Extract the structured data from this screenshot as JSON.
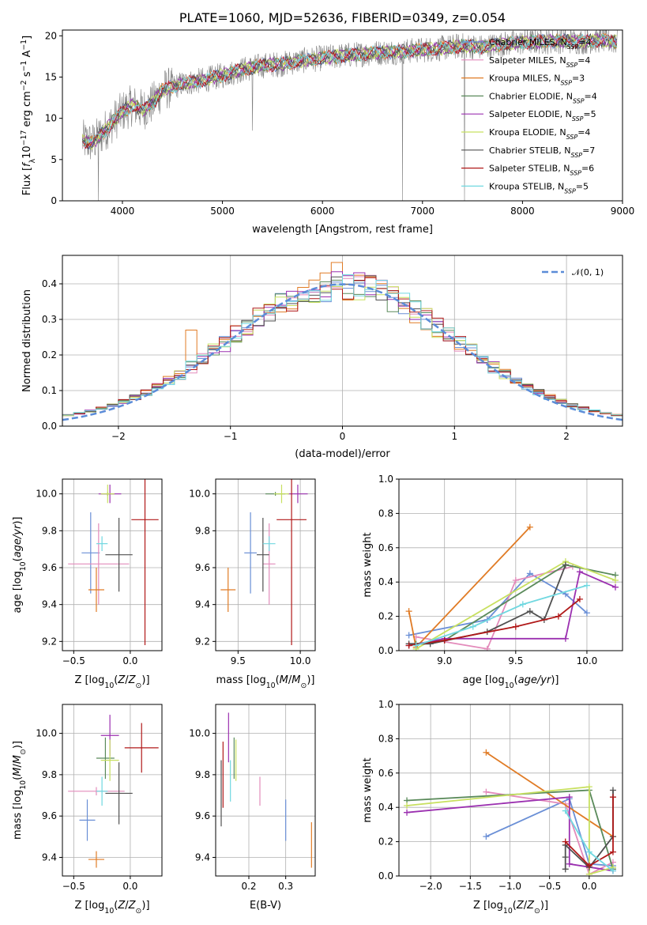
{
  "figure": {
    "title": "PLATE=1060, MJD=52636, FIBERID=0349, z=0.054"
  },
  "colors": {
    "Chabrier MILES": "#6a8fd6",
    "Salpeter MILES": "#e38bbb",
    "Kroupa MILES": "#e07b25",
    "Chabrier ELODIE": "#5a8a5a",
    "Salpeter ELODIE": "#9b30b0",
    "Kroupa ELODIE": "#c8e060",
    "Chabrier STELIB": "#505050",
    "Salpeter STELIB": "#b01818",
    "Kroupa STELIB": "#70d8e0",
    "data": "#808080",
    "normal": "#5b8cd8"
  },
  "chart_data": [
    {
      "id": "spectrum",
      "type": "line",
      "title": "PLATE=1060, MJD=52636, FIBERID=0349, z=0.054",
      "xlabel": "wavelength [Angstrom, rest frame]",
      "ylabel": "Flux [f_λ 10^-17 erg cm^-2 s^-1 A^-1]",
      "xlim": [
        3400,
        9000
      ],
      "ylim": [
        0,
        20.7
      ],
      "xticks": [
        4000,
        5000,
        6000,
        7000,
        8000,
        9000
      ],
      "yticks": [
        0,
        5,
        10,
        15,
        20
      ],
      "grid": false,
      "legend_position": "right",
      "continuum": {
        "x": [
          3600,
          3700,
          3800,
          3900,
          4000,
          4100,
          4200,
          4300,
          4400,
          4600,
          4800,
          5000,
          5200,
          5400,
          5600,
          5800,
          6000,
          6200,
          6400,
          6600,
          6800,
          7000,
          7200,
          7400,
          7600,
          7800,
          8000,
          8200,
          8400,
          8600,
          8800,
          8950
        ],
        "y": [
          7.3,
          7.0,
          8.2,
          9.5,
          10.8,
          11.6,
          11.0,
          11.8,
          13.4,
          14.2,
          14.6,
          15.2,
          15.9,
          16.4,
          16.6,
          17.0,
          17.3,
          17.6,
          17.8,
          18.0,
          18.1,
          18.3,
          18.5,
          18.8,
          18.6,
          19.0,
          19.2,
          19.3,
          19.4,
          19.3,
          19.5,
          19.2
        ]
      },
      "legend": [
        "Chabrier MILES, N_SSP=4",
        "Salpeter MILES, N_SSP=4",
        "Kroupa MILES, N_SSP=3",
        "Chabrier ELODIE, N_SSP=4",
        "Salpeter ELODIE, N_SSP=5",
        "Kroupa ELODIE, N_SSP=4",
        "Chabrier STELIB, N_SSP=7",
        "Salpeter STELIB, N_SSP=6",
        "Kroupa STELIB, N_SSP=5"
      ]
    },
    {
      "id": "residuals",
      "type": "histogram",
      "xlabel": "(data-model)/error",
      "ylabel": "Normed distribution",
      "xlim": [
        -2.5,
        2.5
      ],
      "ylim": [
        0,
        0.48
      ],
      "xticks": [
        -2,
        -1,
        0,
        1,
        2
      ],
      "yticks": [
        0.0,
        0.1,
        0.2,
        0.3,
        0.4
      ],
      "grid": true,
      "legend_label": "𝒩(0, 1)",
      "legend_position": "top-right",
      "bin_width": 0.1,
      "base_shape": "normal-like, peak ~0.38 at 0",
      "notable_bins": [
        {
          "x": -0.1,
          "y": 0.46,
          "series": "Kroupa MILES"
        },
        {
          "x": 0.1,
          "y": 0.41,
          "series": "Salpeter STELIB"
        },
        {
          "x": -1.4,
          "y": 0.27,
          "series": "Kroupa MILES"
        }
      ]
    },
    {
      "id": "age-vs-Z",
      "type": "errorbar",
      "xlabel": "Z [log10(Z/Z⊙)]",
      "ylabel": "age [log10(age/yr)]",
      "xlim": [
        -0.6,
        0.28
      ],
      "ylim": [
        9.15,
        10.08
      ],
      "xticks": [
        -0.5,
        0.0
      ],
      "yticks": [
        9.2,
        9.4,
        9.6,
        9.8,
        10.0
      ],
      "grid": true,
      "points": [
        {
          "series": "Chabrier MILES",
          "x": -0.35,
          "y": 9.68,
          "xerr": 0.08,
          "yerr": 0.22
        },
        {
          "series": "Salpeter MILES",
          "x": -0.28,
          "y": 9.62,
          "xerr": 0.27,
          "yerr": 0.22
        },
        {
          "series": "Kroupa MILES",
          "x": -0.3,
          "y": 9.48,
          "xerr": 0.07,
          "yerr": 0.12
        },
        {
          "series": "Chabrier ELODIE",
          "x": -0.2,
          "y": 10.0,
          "xerr": 0.06,
          "yerr": 0.01
        },
        {
          "series": "Salpeter ELODIE",
          "x": -0.18,
          "y": 10.0,
          "xerr": 0.1,
          "yerr": 0.05
        },
        {
          "series": "Kroupa ELODIE",
          "x": -0.2,
          "y": 10.0,
          "xerr": 0.06,
          "yerr": 0.05
        },
        {
          "series": "Chabrier STELIB",
          "x": -0.1,
          "y": 9.67,
          "xerr": 0.12,
          "yerr": 0.2
        },
        {
          "series": "Salpeter STELIB",
          "x": 0.13,
          "y": 9.86,
          "xerr": 0.12,
          "yerr": 0.68
        },
        {
          "series": "Kroupa STELIB",
          "x": -0.25,
          "y": 9.73,
          "xerr": 0.05,
          "yerr": 0.04
        }
      ]
    },
    {
      "id": "age-vs-mass",
      "type": "errorbar",
      "xlabel": "mass [log10(M/M⊙)]",
      "ylabel": "",
      "xlim": [
        9.32,
        10.12
      ],
      "ylim": [
        9.15,
        10.08
      ],
      "xticks": [
        9.5,
        10.0
      ],
      "yticks": [
        9.2,
        9.4,
        9.6,
        9.8,
        10.0
      ],
      "grid": true,
      "points": [
        {
          "series": "Chabrier MILES",
          "x": 9.6,
          "y": 9.68,
          "xerr": 0.05,
          "yerr": 0.22
        },
        {
          "series": "Salpeter MILES",
          "x": 9.75,
          "y": 9.62,
          "xerr": 0.05,
          "yerr": 0.22
        },
        {
          "series": "Kroupa MILES",
          "x": 9.42,
          "y": 9.48,
          "xerr": 0.06,
          "yerr": 0.12
        },
        {
          "series": "Chabrier ELODIE",
          "x": 9.8,
          "y": 10.0,
          "xerr": 0.08,
          "yerr": 0.01
        },
        {
          "series": "Salpeter ELODIE",
          "x": 9.98,
          "y": 10.0,
          "xerr": 0.08,
          "yerr": 0.05
        },
        {
          "series": "Kroupa ELODIE",
          "x": 9.85,
          "y": 10.0,
          "xerr": 0.06,
          "yerr": 0.05
        },
        {
          "series": "Chabrier STELIB",
          "x": 9.7,
          "y": 9.67,
          "xerr": 0.05,
          "yerr": 0.2
        },
        {
          "series": "Salpeter STELIB",
          "x": 9.93,
          "y": 9.86,
          "xerr": 0.12,
          "yerr": 0.68
        },
        {
          "series": "Kroupa STELIB",
          "x": 9.75,
          "y": 9.73,
          "xerr": 0.05,
          "yerr": 0.04
        }
      ]
    },
    {
      "id": "weight-vs-age",
      "type": "line",
      "xlabel": "age [log10(age/yr)]",
      "ylabel": "mass weight",
      "xlim": [
        8.68,
        10.25
      ],
      "ylim": [
        0.0,
        1.0
      ],
      "xticks": [
        9.0,
        9.5,
        10.0
      ],
      "yticks": [
        0.0,
        0.2,
        0.4,
        0.6,
        0.8,
        1.0
      ],
      "grid": true,
      "series": [
        {
          "name": "Chabrier MILES",
          "x": [
            8.75,
            9.3,
            9.6,
            9.85,
            10.0
          ],
          "y": [
            0.09,
            0.18,
            0.45,
            0.33,
            0.22
          ]
        },
        {
          "name": "Salpeter MILES",
          "x": [
            8.8,
            9.3,
            9.5,
            9.9
          ],
          "y": [
            0.08,
            0.01,
            0.41,
            0.49
          ]
        },
        {
          "name": "Kroupa MILES",
          "x": [
            8.75,
            8.8,
            9.6
          ],
          "y": [
            0.23,
            0.02,
            0.72
          ]
        },
        {
          "name": "Chabrier ELODIE",
          "x": [
            8.8,
            9.0,
            9.85,
            10.2
          ],
          "y": [
            0.04,
            0.06,
            0.5,
            0.44
          ]
        },
        {
          "name": "Salpeter ELODIE",
          "x": [
            8.75,
            9.0,
            9.85,
            9.95,
            10.2
          ],
          "y": [
            0.03,
            0.07,
            0.07,
            0.46,
            0.37
          ]
        },
        {
          "name": "Kroupa ELODIE",
          "x": [
            8.8,
            9.85,
            10.2
          ],
          "y": [
            0.01,
            0.52,
            0.41
          ]
        },
        {
          "name": "Chabrier STELIB",
          "x": [
            8.75,
            8.9,
            9.3,
            9.6,
            9.7,
            9.85
          ],
          "y": [
            0.04,
            0.04,
            0.11,
            0.23,
            0.18,
            0.5
          ]
        },
        {
          "name": "Salpeter STELIB",
          "x": [
            8.75,
            9.0,
            9.5,
            9.8,
            9.95
          ],
          "y": [
            0.03,
            0.06,
            0.14,
            0.2,
            0.3
          ]
        },
        {
          "name": "Kroupa STELIB",
          "x": [
            8.8,
            9.2,
            9.55,
            10.0
          ],
          "y": [
            0.03,
            0.14,
            0.27,
            0.38
          ]
        }
      ]
    },
    {
      "id": "mass-vs-Z",
      "type": "errorbar",
      "xlabel": "Z [log10(Z/Z⊙)]",
      "ylabel": "mass [log10(M/M⊙)]",
      "xlim": [
        -0.6,
        0.28
      ],
      "ylim": [
        9.31,
        10.14
      ],
      "xticks": [
        -0.5,
        0.0
      ],
      "yticks": [
        9.4,
        9.6,
        9.8,
        10.0
      ],
      "grid": true,
      "points": [
        {
          "series": "Chabrier MILES",
          "x": -0.38,
          "y": 9.58,
          "xerr": 0.07,
          "yerr": 0.1
        },
        {
          "series": "Salpeter MILES",
          "x": -0.3,
          "y": 9.72,
          "xerr": 0.25,
          "yerr": 0.02
        },
        {
          "series": "Kroupa MILES",
          "x": -0.3,
          "y": 9.39,
          "xerr": 0.07,
          "yerr": 0.04
        },
        {
          "series": "Chabrier ELODIE",
          "x": -0.22,
          "y": 9.88,
          "xerr": 0.08,
          "yerr": 0.1
        },
        {
          "series": "Salpeter ELODIE",
          "x": -0.18,
          "y": 9.99,
          "xerr": 0.08,
          "yerr": 0.1
        },
        {
          "series": "Kroupa ELODIE",
          "x": -0.18,
          "y": 9.87,
          "xerr": 0.08,
          "yerr": 0.1
        },
        {
          "series": "Chabrier STELIB",
          "x": -0.1,
          "y": 9.71,
          "xerr": 0.12,
          "yerr": 0.15
        },
        {
          "series": "Salpeter STELIB",
          "x": 0.1,
          "y": 9.93,
          "xerr": 0.15,
          "yerr": 0.12
        },
        {
          "series": "Kroupa STELIB",
          "x": -0.25,
          "y": 9.72,
          "xerr": 0.05,
          "yerr": 0.07
        }
      ]
    },
    {
      "id": "mass-vs-EBV",
      "type": "errorbar",
      "xlabel": "E(B-V)",
      "ylabel": "",
      "xlim": [
        0.11,
        0.38
      ],
      "ylim": [
        9.31,
        10.14
      ],
      "xticks": [
        0.2,
        0.3
      ],
      "yticks": [
        9.4,
        9.6,
        9.8,
        10.0
      ],
      "grid": true,
      "points": [
        {
          "series": "Chabrier MILES",
          "x": 0.3,
          "y": 9.58,
          "xerr": 0,
          "yerr": 0.1
        },
        {
          "series": "Salpeter MILES",
          "x": 0.23,
          "y": 9.72,
          "xerr": 0,
          "yerr": 0.07
        },
        {
          "series": "Kroupa MILES",
          "x": 0.37,
          "y": 9.46,
          "xerr": 0,
          "yerr": 0.11
        },
        {
          "series": "Chabrier ELODIE",
          "x": 0.16,
          "y": 9.88,
          "xerr": 0,
          "yerr": 0.1
        },
        {
          "series": "Salpeter ELODIE",
          "x": 0.145,
          "y": 9.98,
          "xerr": 0,
          "yerr": 0.12
        },
        {
          "series": "Kroupa ELODIE",
          "x": 0.165,
          "y": 9.87,
          "xerr": 0,
          "yerr": 0.1
        },
        {
          "series": "Chabrier STELIB",
          "x": 0.125,
          "y": 9.71,
          "xerr": 0,
          "yerr": 0.16
        },
        {
          "series": "Salpeter STELIB",
          "x": 0.13,
          "y": 9.8,
          "xerr": 0,
          "yerr": 0.16
        },
        {
          "series": "Kroupa STELIB",
          "x": 0.15,
          "y": 9.77,
          "xerr": 0,
          "yerr": 0.1
        }
      ]
    },
    {
      "id": "weight-vs-Z",
      "type": "line",
      "xlabel": "Z [log10(Z/Z⊙)]",
      "ylabel": "mass weight",
      "xlim": [
        -2.4,
        0.42
      ],
      "ylim": [
        0.0,
        1.0
      ],
      "xticks": [
        -2.0,
        -1.5,
        -1.0,
        -0.5,
        0.0
      ],
      "yticks": [
        0.0,
        0.2,
        0.4,
        0.6,
        0.8,
        1.0
      ],
      "grid": true,
      "series": [
        {
          "name": "Chabrier MILES",
          "x": [
            -1.3,
            -0.25,
            0.0,
            0.3
          ],
          "y": [
            0.23,
            0.45,
            0.07,
            0.06
          ]
        },
        {
          "name": "Salpeter MILES",
          "x": [
            -1.3,
            -0.3,
            0.0,
            0.3
          ],
          "y": [
            0.49,
            0.42,
            0.01,
            0.08
          ]
        },
        {
          "name": "Kroupa MILES",
          "x": [
            -1.3,
            0.3
          ],
          "y": [
            0.72,
            0.23
          ]
        },
        {
          "name": "Chabrier ELODIE",
          "x": [
            -2.3,
            0.0,
            0.3
          ],
          "y": [
            0.44,
            0.5,
            0.04
          ]
        },
        {
          "name": "Salpeter ELODIE",
          "x": [
            -2.3,
            -0.25,
            -0.25,
            0.3
          ],
          "y": [
            0.37,
            0.46,
            0.07,
            0.03
          ]
        },
        {
          "name": "Kroupa ELODIE",
          "x": [
            -2.3,
            0.0,
            0.0,
            0.3
          ],
          "y": [
            0.41,
            0.52,
            0.01,
            0.05
          ]
        },
        {
          "name": "Chabrier STELIB",
          "x": [
            -0.3,
            -0.3,
            -0.3,
            0.0,
            0.3,
            0.3
          ],
          "y": [
            0.04,
            0.11,
            0.18,
            0.05,
            0.23,
            0.5
          ]
        },
        {
          "name": "Salpeter STELIB",
          "x": [
            -0.3,
            0.0,
            0.3,
            0.3
          ],
          "y": [
            0.2,
            0.06,
            0.14,
            0.46
          ]
        },
        {
          "name": "Kroupa STELIB",
          "x": [
            -0.3,
            0.0,
            0.3
          ],
          "y": [
            0.38,
            0.14,
            0.03
          ]
        }
      ]
    }
  ]
}
